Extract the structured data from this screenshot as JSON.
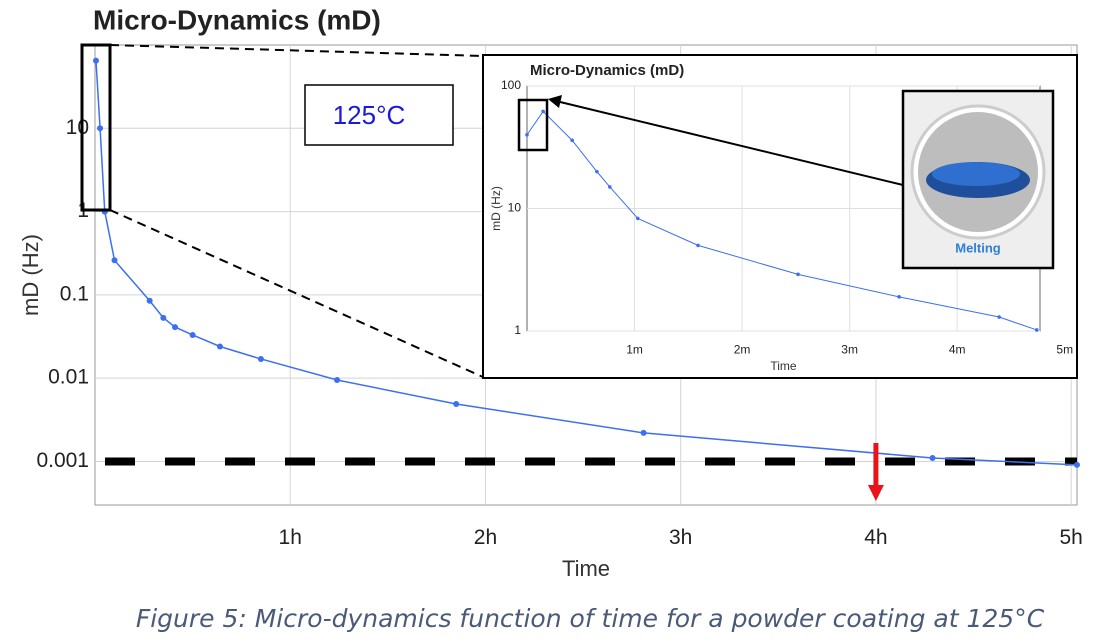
{
  "chart_data": [
    {
      "type": "line",
      "title": "Micro-Dynamics (mD)",
      "x_label": "Time",
      "y_label": "mD (Hz)",
      "annotation": "125°C",
      "x": [
        0.005,
        0.026,
        0.05,
        0.1,
        0.28,
        0.35,
        0.41,
        0.5,
        0.64,
        0.85,
        1.24,
        1.85,
        2.81,
        4.29,
        5.03
      ],
      "values": [
        65,
        10,
        1,
        0.26,
        0.085,
        0.053,
        0.041,
        0.033,
        0.024,
        0.017,
        0.0095,
        0.0049,
        0.0022,
        0.0011,
        0.00091
      ],
      "color": "#3d6ff2",
      "log_y": true,
      "grid": true,
      "xlim": [
        0,
        5.03
      ],
      "ylim": [
        0.0003,
        100
      ],
      "xticks": [
        {
          "value": 1,
          "label": "1h"
        },
        {
          "value": 2,
          "label": "2h"
        },
        {
          "value": 3,
          "label": "3h"
        },
        {
          "value": 4,
          "label": "4h"
        },
        {
          "value": 5,
          "label": "5h"
        }
      ],
      "yticks": [
        0.001,
        0.01,
        0.1,
        1,
        10
      ],
      "reference_y": 0.001,
      "highlight_x": 4
    },
    {
      "type": "line",
      "title": "Micro-Dynamics (mD)",
      "x_label": "Time",
      "y_label": "mD (Hz)",
      "image_label": "Melting",
      "x": [
        0,
        0.15,
        0.42,
        0.65,
        0.77,
        1.03,
        1.59,
        2.52,
        3.46,
        4.39,
        4.74
      ],
      "values": [
        40,
        62,
        36,
        20,
        15,
        8.3,
        5.0,
        2.9,
        1.9,
        1.3,
        1.02
      ],
      "color": "#3d6ff2",
      "log_y": true,
      "grid": true,
      "xlim": [
        0,
        4.77
      ],
      "ylim": [
        1,
        100
      ],
      "xticks": [
        {
          "value": 1,
          "label": "1m"
        },
        {
          "value": 2,
          "label": "2m"
        },
        {
          "value": 3,
          "label": "3m"
        },
        {
          "value": 4,
          "label": "4m"
        },
        {
          "value": 5,
          "label": "5m"
        }
      ],
      "yticks": [
        1,
        10,
        100
      ]
    }
  ],
  "caption": "Figure 5: Micro-dynamics function of time for a powder coating at 125°C"
}
